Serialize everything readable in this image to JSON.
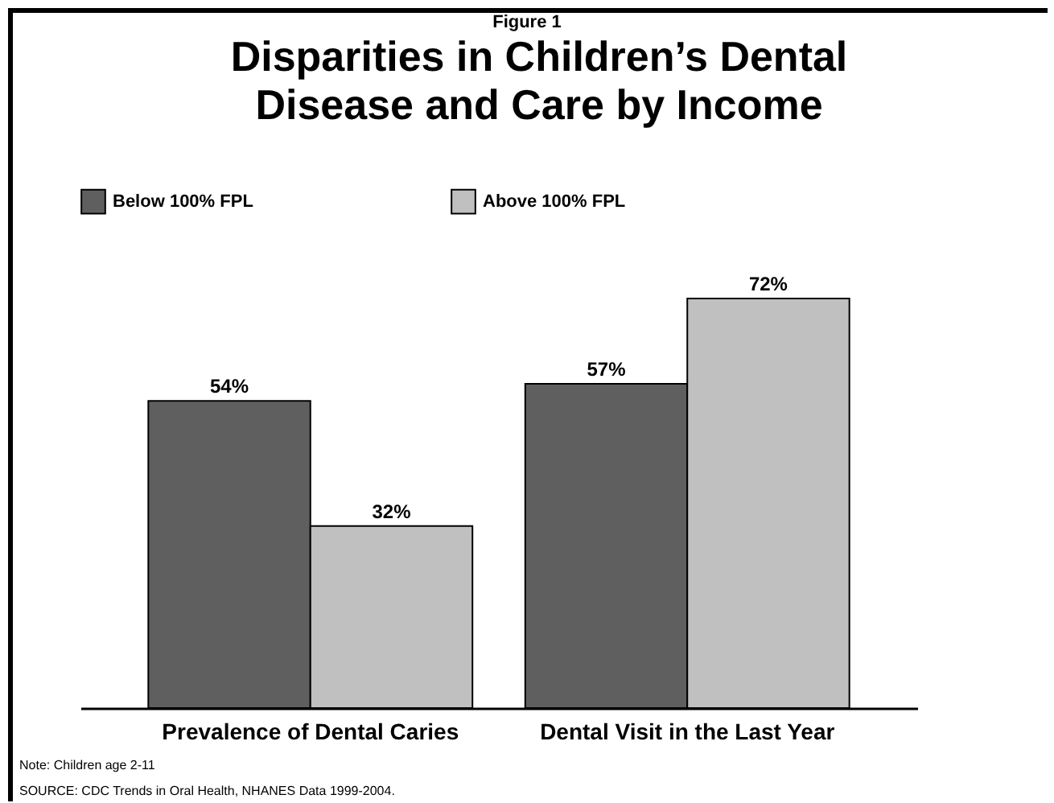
{
  "chart_data": {
    "type": "bar",
    "subtitle": "Figure 1",
    "title": "Disparities in Children’s Dental Disease and Care by Income",
    "categories": [
      "Prevalence of Dental Caries",
      "Dental Visit in the Last Year"
    ],
    "series": [
      {
        "name": "Below 100% FPL",
        "color": "#5f5f5f",
        "values": [
          54,
          57
        ],
        "value_labels": [
          "54%",
          "57%"
        ]
      },
      {
        "name": "Above 100% FPL",
        "color": "#c0c0c0",
        "values": [
          32,
          72
        ],
        "value_labels": [
          "32%",
          "72%"
        ]
      }
    ],
    "legend": "top left",
    "annotations": [
      "Note: Children age 2-11",
      "SOURCE: CDC Trends in Oral Health, NHANES Data 1999-2004."
    ]
  }
}
